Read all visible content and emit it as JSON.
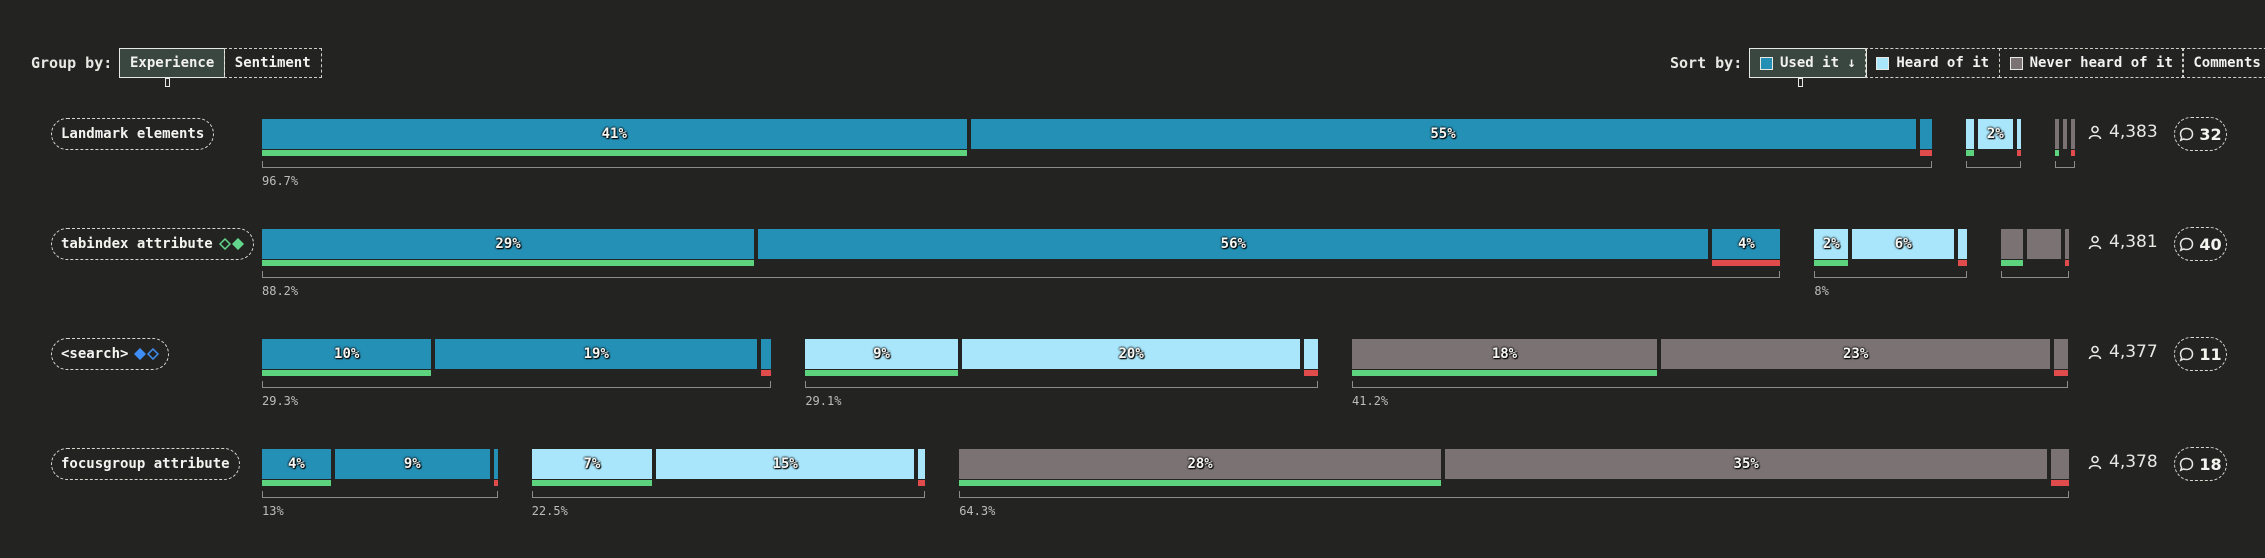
{
  "toolbar": {
    "group_by_label": "Group by:",
    "group_buttons": [
      {
        "label": "Experience",
        "active": true
      },
      {
        "label": "Sentiment",
        "active": false
      }
    ],
    "sort_by_label": "Sort by:",
    "sort_buttons": [
      {
        "label": "Used it ↓",
        "active": true,
        "swatch": "#2590b5"
      },
      {
        "label": "Heard of it",
        "active": false,
        "swatch": "#a9e6fb"
      },
      {
        "label": "Never heard of it",
        "active": false,
        "swatch": "#7b7273"
      },
      {
        "label": "Comments",
        "active": false,
        "swatch": null
      }
    ]
  },
  "colors": {
    "used": "#2590b5",
    "heard": "#a9e6fb",
    "never": "#7b7273",
    "positive": "#5dd37e",
    "negative": "#e04c4c",
    "bracket": "#8d8d88"
  },
  "chart_data": {
    "type": "bar",
    "groups": [
      "Used it",
      "Heard of it",
      "Never heard of it"
    ],
    "sentiments": [
      "positive",
      "neutral",
      "negative"
    ],
    "rows": [
      {
        "feature": "Landmark elements",
        "icons": [],
        "respondents": "4,383",
        "comments": "32",
        "groups": [
          {
            "group": "Used it",
            "total": "96.7%",
            "show_total": true,
            "segments": [
              {
                "sentiment": "positive",
                "value": 41,
                "label": "41%"
              },
              {
                "sentiment": "neutral",
                "value": 55,
                "label": "55%"
              },
              {
                "sentiment": "negative",
                "value": 0.7,
                "label": ""
              }
            ]
          },
          {
            "group": "Heard of it",
            "total": "3%",
            "show_total": false,
            "segments": [
              {
                "sentiment": "positive",
                "value": 0.5,
                "label": ""
              },
              {
                "sentiment": "neutral",
                "value": 2,
                "label": "2%"
              },
              {
                "sentiment": "negative",
                "value": 0.2,
                "label": ""
              }
            ]
          },
          {
            "group": "Never heard of it",
            "total": "0.3%",
            "show_total": false,
            "segments": [
              {
                "sentiment": "positive",
                "value": 0.15,
                "label": ""
              },
              {
                "sentiment": "neutral",
                "value": 0.15,
                "label": ""
              },
              {
                "sentiment": "negative",
                "value": 0.05,
                "label": ""
              }
            ]
          }
        ]
      },
      {
        "feature": "tabindex attribute",
        "icons": [
          "diamond-green-outline",
          "diamond-green"
        ],
        "respondents": "4,381",
        "comments": "40",
        "groups": [
          {
            "group": "Used it",
            "total": "88.2%",
            "show_total": true,
            "segments": [
              {
                "sentiment": "positive",
                "value": 29,
                "label": "29%"
              },
              {
                "sentiment": "neutral",
                "value": 56,
                "label": "56%"
              },
              {
                "sentiment": "negative",
                "value": 4,
                "label": "4%"
              }
            ]
          },
          {
            "group": "Heard of it",
            "total": "8%",
            "show_total": true,
            "segments": [
              {
                "sentiment": "positive",
                "value": 2,
                "label": "2%"
              },
              {
                "sentiment": "neutral",
                "value": 6,
                "label": "6%"
              },
              {
                "sentiment": "negative",
                "value": 0.5,
                "label": ""
              }
            ]
          },
          {
            "group": "Never heard of it",
            "total": "3.5%",
            "show_total": false,
            "segments": [
              {
                "sentiment": "positive",
                "value": 1.3,
                "label": ""
              },
              {
                "sentiment": "neutral",
                "value": 2,
                "label": ""
              },
              {
                "sentiment": "negative",
                "value": 0.2,
                "label": ""
              }
            ]
          }
        ]
      },
      {
        "feature": "<search>",
        "icons": [
          "diamond-blue",
          "diamond-blue-outline"
        ],
        "respondents": "4,377",
        "comments": "11",
        "groups": [
          {
            "group": "Used it",
            "total": "29.3%",
            "show_total": true,
            "segments": [
              {
                "sentiment": "positive",
                "value": 10,
                "label": "10%"
              },
              {
                "sentiment": "neutral",
                "value": 19,
                "label": "19%"
              },
              {
                "sentiment": "negative",
                "value": 0.6,
                "label": ""
              }
            ]
          },
          {
            "group": "Heard of it",
            "total": "29.1%",
            "show_total": true,
            "segments": [
              {
                "sentiment": "positive",
                "value": 9,
                "label": "9%"
              },
              {
                "sentiment": "neutral",
                "value": 20,
                "label": "20%"
              },
              {
                "sentiment": "negative",
                "value": 0.8,
                "label": ""
              }
            ]
          },
          {
            "group": "Never heard of it",
            "total": "41.2%",
            "show_total": true,
            "segments": [
              {
                "sentiment": "positive",
                "value": 18,
                "label": "18%"
              },
              {
                "sentiment": "neutral",
                "value": 23,
                "label": "23%"
              },
              {
                "sentiment": "negative",
                "value": 0.8,
                "label": ""
              }
            ]
          }
        ]
      },
      {
        "feature": "focusgroup attribute",
        "icons": [],
        "respondents": "4,378",
        "comments": "18",
        "groups": [
          {
            "group": "Used it",
            "total": "13%",
            "show_total": true,
            "segments": [
              {
                "sentiment": "positive",
                "value": 4,
                "label": "4%"
              },
              {
                "sentiment": "neutral",
                "value": 9,
                "label": "9%"
              },
              {
                "sentiment": "negative",
                "value": 0.2,
                "label": ""
              }
            ]
          },
          {
            "group": "Heard of it",
            "total": "22.5%",
            "show_total": true,
            "segments": [
              {
                "sentiment": "positive",
                "value": 7,
                "label": "7%"
              },
              {
                "sentiment": "neutral",
                "value": 15,
                "label": "15%"
              },
              {
                "sentiment": "negative",
                "value": 0.4,
                "label": ""
              }
            ]
          },
          {
            "group": "Never heard of it",
            "total": "64.3%",
            "show_total": true,
            "segments": [
              {
                "sentiment": "positive",
                "value": 28,
                "label": "28%"
              },
              {
                "sentiment": "neutral",
                "value": 35,
                "label": "35%"
              },
              {
                "sentiment": "negative",
                "value": 1,
                "label": ""
              }
            ]
          }
        ]
      }
    ]
  }
}
